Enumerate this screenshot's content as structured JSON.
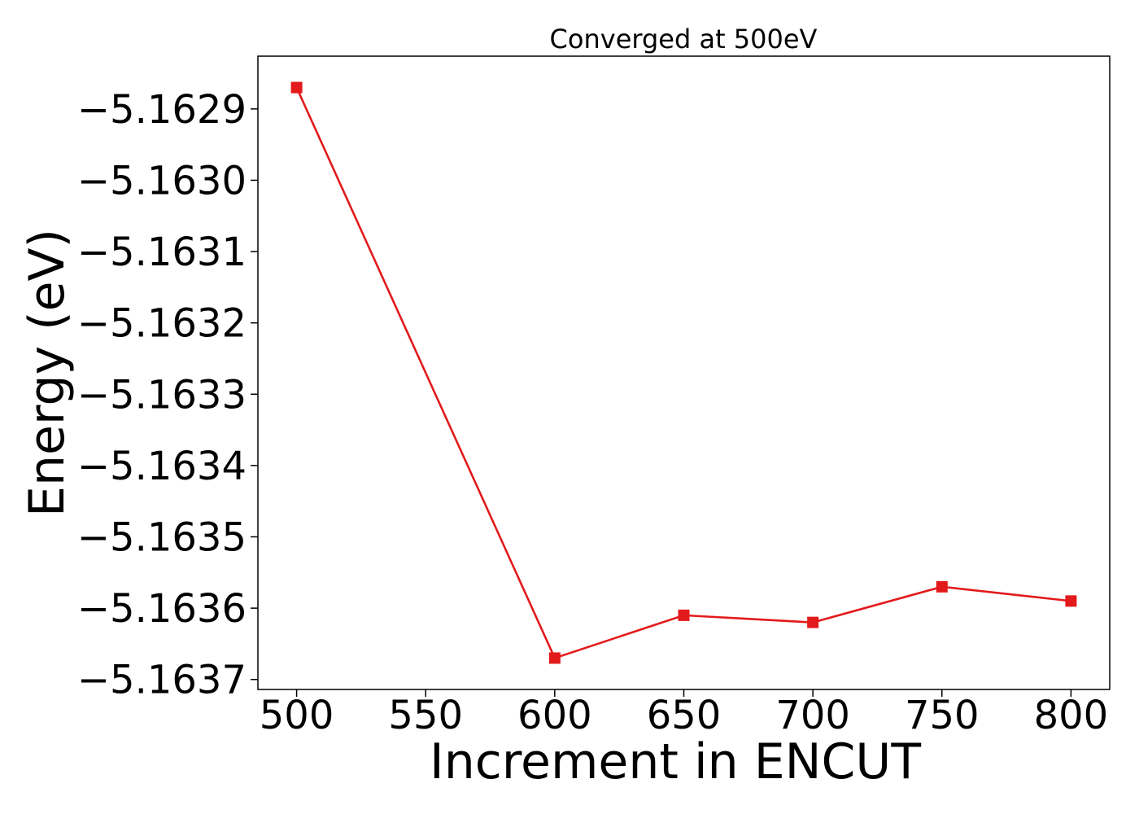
{
  "chart_data": {
    "type": "line",
    "title": "Converged at 500eV",
    "xlabel": "Increment in ENCUT",
    "ylabel": "Energy (eV)",
    "x": [
      500,
      600,
      650,
      700,
      750,
      800
    ],
    "series": [
      {
        "values": [
          -5.16287,
          -5.16367,
          -5.16361,
          -5.16362,
          -5.16357,
          -5.16359
        ],
        "color": "#e31a1c",
        "marker": "square"
      }
    ],
    "xticks": [
      500,
      550,
      600,
      650,
      700,
      750,
      800
    ],
    "xtick_labels": [
      "500",
      "550",
      "600",
      "650",
      "700",
      "750",
      "800"
    ],
    "yticks": [
      -5.1629,
      -5.163,
      -5.1631,
      -5.1632,
      -5.1633,
      -5.1634,
      -5.1635,
      -5.1636,
      -5.1637
    ],
    "ytick_labels": [
      "−5.1629",
      "−5.1630",
      "−5.1631",
      "−5.1632",
      "−5.1633",
      "−5.1634",
      "−5.1635",
      "−5.1636",
      "−5.1637"
    ],
    "xlim": [
      485,
      815
    ],
    "ylim": [
      -5.163714,
      -5.162826
    ],
    "grid": false,
    "legend": "none"
  }
}
